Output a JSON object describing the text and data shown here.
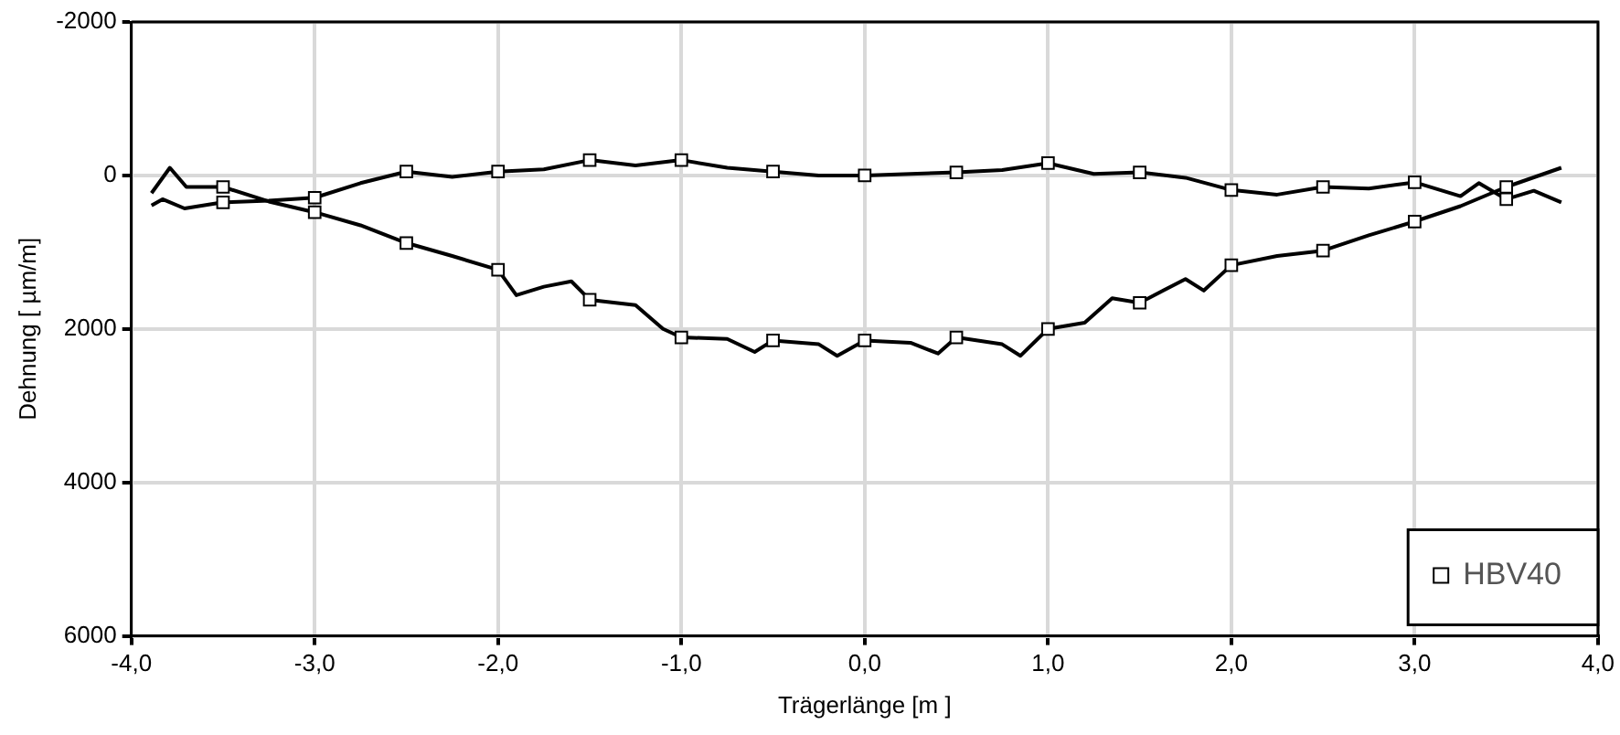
{
  "chart_data": {
    "type": "line",
    "xlabel": "Trägerlänge [m ]",
    "ylabel": "Dehnung [ µm/m]",
    "xlim": [
      -4,
      4
    ],
    "xticks": [
      {
        "value": -4,
        "label": "-4,0"
      },
      {
        "value": -3,
        "label": "-3,0"
      },
      {
        "value": -2,
        "label": "-2,0"
      },
      {
        "value": -1,
        "label": "-1,0"
      },
      {
        "value": 0,
        "label": "0,0"
      },
      {
        "value": 1,
        "label": "1,0"
      },
      {
        "value": 2,
        "label": "2,0"
      },
      {
        "value": 3,
        "label": "3,0"
      },
      {
        "value": 4,
        "label": "4,0"
      }
    ],
    "ylim": [
      6000,
      -2000
    ],
    "yticks": [
      -2000,
      0,
      2000,
      4000,
      6000
    ],
    "grid": true,
    "legend": "bottom right",
    "line_style": "solid",
    "series": [
      {
        "name": "HBV40",
        "type": "scatter",
        "marker": "square",
        "color": "#000000",
        "x": [
          -3.5,
          -3.0,
          -2.5,
          -2.0,
          -1.5,
          -1.0,
          -0.5,
          0,
          0.5,
          1.0,
          1.5,
          2.0,
          2.5,
          3.0,
          3.5,
          -3.5,
          -3.0,
          -2.5,
          -2.0,
          -1.5,
          -1.0,
          -0.5,
          0,
          0.5,
          1.0,
          1.5,
          2.0,
          2.5,
          3.0,
          3.5
        ],
        "values": [
          350,
          290,
          -50,
          -50,
          -200,
          -200,
          -50,
          0,
          -40,
          -160,
          -40,
          190,
          150,
          90,
          310,
          150,
          480,
          880,
          1230,
          1620,
          2110,
          2150,
          2150,
          2110,
          2000,
          1660,
          1170,
          980,
          600,
          150
        ]
      },
      {
        "marker": "none",
        "color": "#000000",
        "x": [
          -3.89,
          -3.83,
          -3.71,
          -3.5,
          -3.25,
          -3.0,
          -2.75,
          -2.5,
          -2.25,
          -2.0,
          -1.75,
          -1.5,
          -1.25,
          -1.0,
          -0.75,
          -0.5,
          -0.25,
          0,
          0.25,
          0.5,
          0.75,
          1.0,
          1.25,
          1.5,
          1.75,
          2.0,
          2.25,
          2.5,
          2.75,
          3.0,
          3.25,
          3.35,
          3.5,
          3.65,
          3.8
        ],
        "values": [
          390,
          310,
          430,
          350,
          330,
          290,
          100,
          -50,
          20,
          -50,
          -80,
          -200,
          -130,
          -200,
          -100,
          -50,
          0,
          0,
          -20,
          -40,
          -70,
          -160,
          -20,
          -40,
          30,
          190,
          250,
          150,
          170,
          90,
          270,
          100,
          310,
          200,
          350
        ]
      },
      {
        "marker": "none",
        "color": "#000000",
        "x": [
          -3.89,
          -3.79,
          -3.7,
          -3.5,
          -3.25,
          -3.0,
          -2.75,
          -2.5,
          -2.25,
          -2.0,
          -1.9,
          -1.75,
          -1.6,
          -1.5,
          -1.25,
          -1.1,
          -1.0,
          -0.75,
          -0.6,
          -0.5,
          -0.25,
          -0.15,
          0,
          0.25,
          0.4,
          0.5,
          0.75,
          0.85,
          1.0,
          1.2,
          1.35,
          1.5,
          1.75,
          1.85,
          2.0,
          2.25,
          2.5,
          2.75,
          3.0,
          3.25,
          3.5,
          3.8
        ],
        "values": [
          230,
          -100,
          150,
          150,
          340,
          480,
          650,
          880,
          1050,
          1230,
          1560,
          1450,
          1380,
          1620,
          1690,
          2000,
          2110,
          2130,
          2300,
          2150,
          2200,
          2350,
          2150,
          2180,
          2320,
          2110,
          2200,
          2350,
          2000,
          1920,
          1600,
          1660,
          1350,
          1500,
          1170,
          1050,
          980,
          780,
          600,
          400,
          150,
          -100
        ]
      }
    ]
  }
}
